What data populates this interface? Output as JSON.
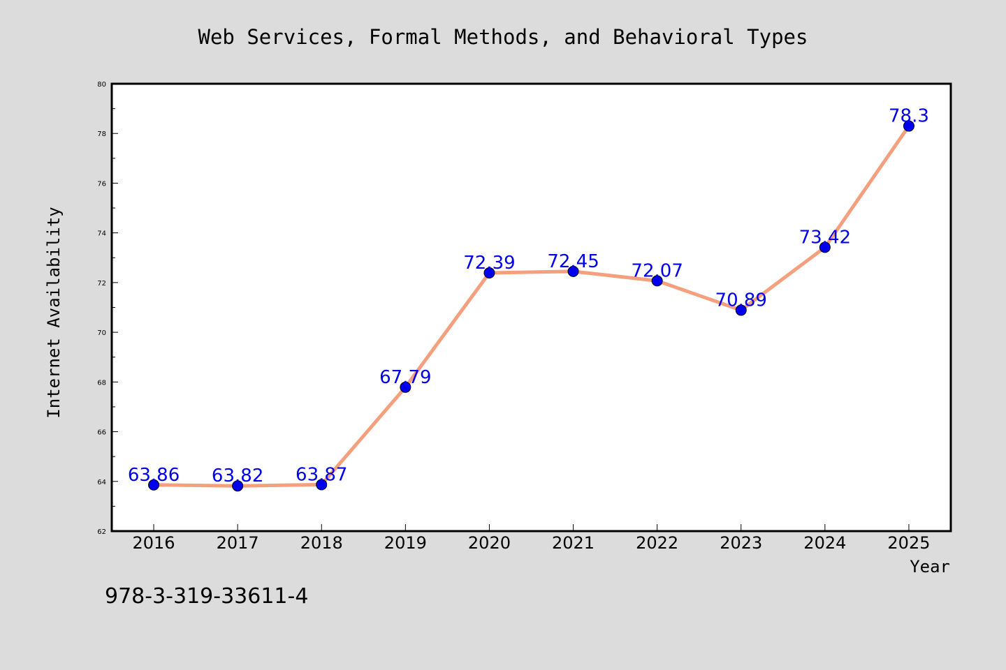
{
  "chart_data": {
    "type": "line",
    "title": "Web Services, Formal Methods, and Behavioral Types",
    "xlabel": "Year",
    "ylabel": "Internet Availability",
    "categories": [
      "2016",
      "2017",
      "2018",
      "2019",
      "2020",
      "2021",
      "2022",
      "2023",
      "2024",
      "2025"
    ],
    "series": [
      {
        "values": [
          63.86,
          63.82,
          63.87,
          67.79,
          72.39,
          72.45,
          72.07,
          70.89,
          73.42,
          78.3
        ],
        "labels": [
          "63.86",
          "63.82",
          "63.87",
          "67.79",
          "72.39",
          "72.45",
          "72.07",
          "70.89",
          "73.42",
          "78.3"
        ]
      }
    ],
    "ylim": [
      62,
      80
    ],
    "yticks": [
      62,
      64,
      66,
      68,
      70,
      72,
      74,
      76,
      78,
      80
    ],
    "grid": false,
    "legend": "none"
  },
  "footer": {
    "text": "978-3-319-33611-4"
  },
  "colors": {
    "background": "#dcdcdc",
    "plot_background": "#ffffff",
    "line": "#f4a07e",
    "marker": "#0000ee",
    "data_label": "#0000ee"
  }
}
